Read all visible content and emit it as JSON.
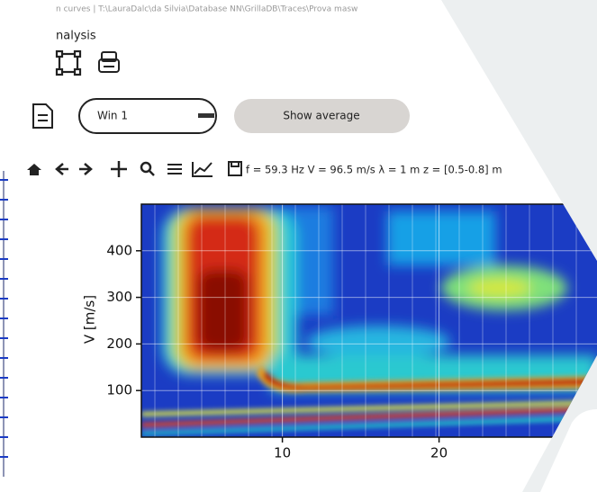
{
  "window": {
    "title": "n curves | T:\\LauraDalc\\da Silvia\\Database NN\\GrillaDB\\Traces\\Prova masw",
    "menu": "nalysis"
  },
  "controls": {
    "window_select": "Win 1",
    "button": "Show average"
  },
  "toolbar": {
    "readout": "f = 59.3 Hz  V = 96.5 m/s  λ = 1 m  z = [0.5-0.8] m"
  },
  "chart_data": {
    "type": "heatmap",
    "y_label": "V [m/s]",
    "xlim": [
      1,
      30
    ],
    "ylim": [
      0,
      500
    ],
    "xticks": [
      10,
      20
    ],
    "yticks": [
      100,
      200,
      300,
      400
    ],
    "grid": true
  }
}
